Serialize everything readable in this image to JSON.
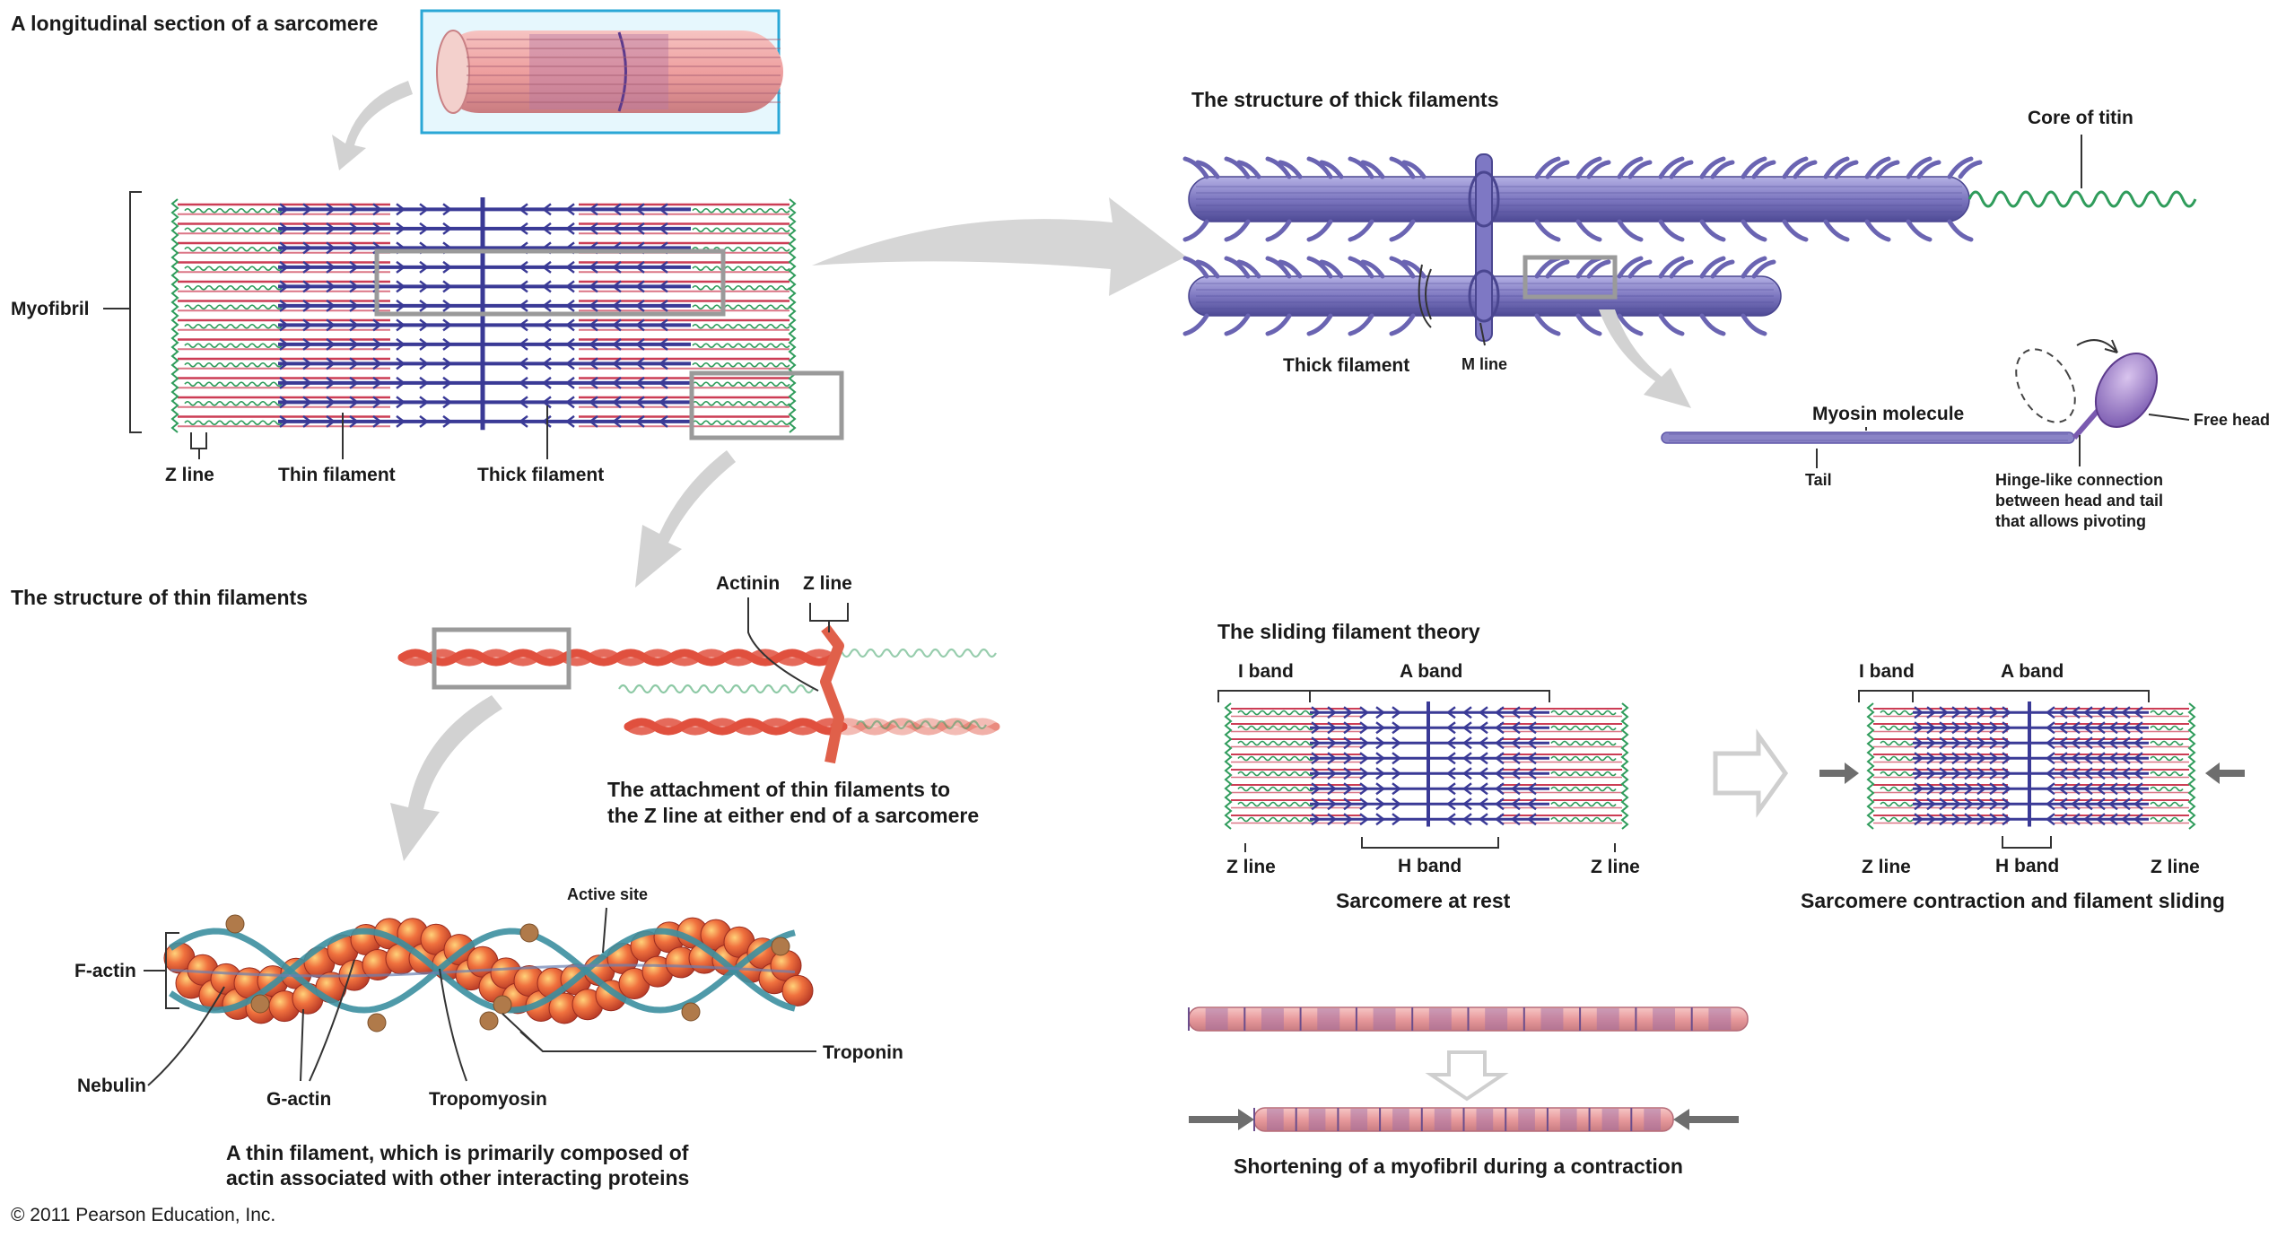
{
  "sections": {
    "longitudinal": "A longitudinal section of a sarcomere",
    "thick_structure": "The structure of thick filaments",
    "thin_structure": "The structure of thin filaments",
    "sliding_theory": "The sliding filament theory"
  },
  "labels": {
    "myofibril": "Myofibril",
    "z_line": "Z line",
    "thin_filament": "Thin filament",
    "thick_filament": "Thick filament",
    "core_of_titin": "Core of titin",
    "m_line": "M line",
    "myosin_molecule": "Myosin molecule",
    "free_head": "Free head",
    "tail": "Tail",
    "hinge": [
      "Hinge-like connection",
      "between head and tail",
      "that allows pivoting"
    ],
    "actinin": "Actinin",
    "attachment_caption": [
      "The attachment of thin filaments to",
      "the Z line at either end of a sarcomere"
    ],
    "active_site": "Active site",
    "f_actin": "F-actin",
    "nebulin": "Nebulin",
    "g_actin": "G-actin",
    "tropomyosin": "Tropomyosin",
    "troponin": "Troponin",
    "thin_caption": [
      "A thin filament, which is primarily composed of",
      "actin associated with other interacting proteins"
    ],
    "i_band": "I band",
    "a_band": "A band",
    "h_band": "H band",
    "rest_caption": "Sarcomere at rest",
    "contraction_caption": "Sarcomere contraction and filament sliding",
    "shortening_caption": "Shortening of a myofibril during a contraction"
  },
  "copyright": "© 2011 Pearson Education, Inc.",
  "colors": {
    "thick": "#3a3a96",
    "thin": "#cc3d55",
    "titin": "#2f9c5b",
    "myosin": "#8a84c6",
    "actin": "#e0503e",
    "tropomyosin": "#3c8fa0",
    "troponin": "#b07a4a"
  }
}
